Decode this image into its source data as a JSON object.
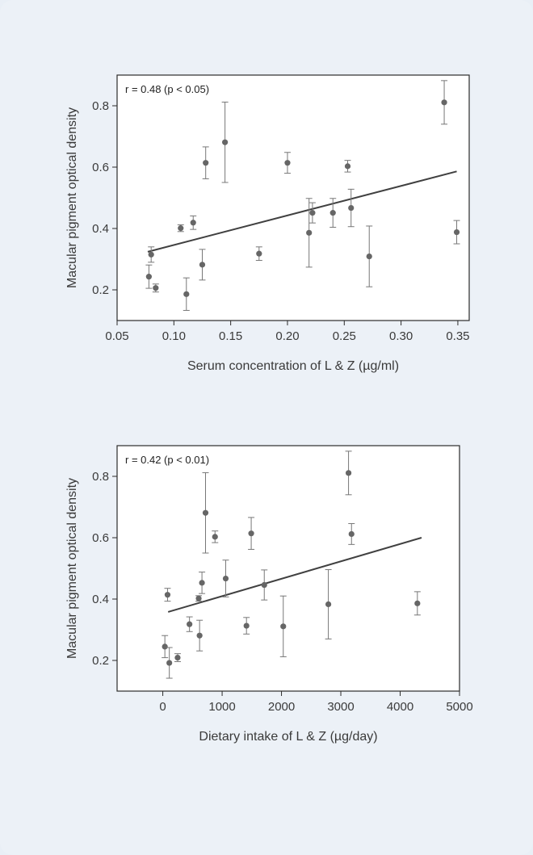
{
  "chart_data": [
    {
      "type": "scatter",
      "annotation": "r = 0.48 (p < 0.05)",
      "xlabel": "Serum concentration of L & Z (µg/ml)",
      "ylabel": "Macular pigment optical density",
      "xlim": [
        0.05,
        0.36
      ],
      "ylim": [
        0.1,
        0.9
      ],
      "x_ticks": [
        {
          "value": 0.05,
          "label": "0.05"
        },
        {
          "value": 0.1,
          "label": "0.10"
        },
        {
          "value": 0.15,
          "label": "0.15"
        },
        {
          "value": 0.2,
          "label": "0.20"
        },
        {
          "value": 0.25,
          "label": "0.25"
        },
        {
          "value": 0.3,
          "label": "0.30"
        },
        {
          "value": 0.35,
          "label": "0.35"
        }
      ],
      "y_ticks": [
        {
          "value": 0.2,
          "label": "0.2"
        },
        {
          "value": 0.4,
          "label": "0.4"
        },
        {
          "value": 0.6,
          "label": "0.6"
        },
        {
          "value": 0.8,
          "label": "0.8"
        }
      ],
      "points": [
        {
          "x": 0.078,
          "y": 0.243,
          "lo": 0.205,
          "hi": 0.281
        },
        {
          "x": 0.08,
          "y": 0.315,
          "lo": 0.29,
          "hi": 0.34
        },
        {
          "x": 0.084,
          "y": 0.206,
          "lo": 0.193,
          "hi": 0.219
        },
        {
          "x": 0.106,
          "y": 0.401,
          "lo": 0.39,
          "hi": 0.412
        },
        {
          "x": 0.111,
          "y": 0.186,
          "lo": 0.133,
          "hi": 0.239
        },
        {
          "x": 0.117,
          "y": 0.419,
          "lo": 0.397,
          "hi": 0.441
        },
        {
          "x": 0.125,
          "y": 0.282,
          "lo": 0.232,
          "hi": 0.332
        },
        {
          "x": 0.128,
          "y": 0.614,
          "lo": 0.562,
          "hi": 0.666
        },
        {
          "x": 0.145,
          "y": 0.681,
          "lo": 0.55,
          "hi": 0.812
        },
        {
          "x": 0.175,
          "y": 0.318,
          "lo": 0.296,
          "hi": 0.34
        },
        {
          "x": 0.2,
          "y": 0.614,
          "lo": 0.58,
          "hi": 0.648
        },
        {
          "x": 0.219,
          "y": 0.386,
          "lo": 0.274,
          "hi": 0.498
        },
        {
          "x": 0.222,
          "y": 0.451,
          "lo": 0.418,
          "hi": 0.484
        },
        {
          "x": 0.24,
          "y": 0.451,
          "lo": 0.404,
          "hi": 0.498
        },
        {
          "x": 0.253,
          "y": 0.603,
          "lo": 0.584,
          "hi": 0.622
        },
        {
          "x": 0.256,
          "y": 0.467,
          "lo": 0.406,
          "hi": 0.528
        },
        {
          "x": 0.272,
          "y": 0.309,
          "lo": 0.21,
          "hi": 0.408
        },
        {
          "x": 0.338,
          "y": 0.811,
          "lo": 0.74,
          "hi": 0.882
        },
        {
          "x": 0.349,
          "y": 0.388,
          "lo": 0.35,
          "hi": 0.426
        }
      ],
      "fit_line": {
        "x": [
          0.077,
          0.349
        ],
        "y": [
          0.324,
          0.586
        ]
      },
      "colors": {
        "point": "#666666",
        "errorbar": "#777777",
        "line": "#404040"
      }
    },
    {
      "type": "scatter",
      "annotation": "r = 0.42 (p < 0.01)",
      "xlabel": "Dietary intake of L & Z (µg/day)",
      "ylabel": "Macular pigment optical density",
      "xlim": [
        -770,
        5000
      ],
      "ylim": [
        0.1,
        0.9
      ],
      "x_ticks": [
        {
          "value": 0,
          "label": "0"
        },
        {
          "value": 1000,
          "label": "1000"
        },
        {
          "value": 2000,
          "label": "2000"
        },
        {
          "value": 3000,
          "label": "3000"
        },
        {
          "value": 4000,
          "label": "4000"
        },
        {
          "value": 5000,
          "label": "5000"
        }
      ],
      "y_ticks": [
        {
          "value": 0.2,
          "label": "0.2"
        },
        {
          "value": 0.4,
          "label": "0.4"
        },
        {
          "value": 0.6,
          "label": "0.6"
        },
        {
          "value": 0.8,
          "label": "0.8"
        }
      ],
      "points": [
        {
          "x": 35,
          "y": 0.245,
          "lo": 0.209,
          "hi": 0.281
        },
        {
          "x": 80,
          "y": 0.414,
          "lo": 0.393,
          "hi": 0.435
        },
        {
          "x": 110,
          "y": 0.192,
          "lo": 0.142,
          "hi": 0.242
        },
        {
          "x": 250,
          "y": 0.209,
          "lo": 0.196,
          "hi": 0.222
        },
        {
          "x": 450,
          "y": 0.318,
          "lo": 0.294,
          "hi": 0.342
        },
        {
          "x": 605,
          "y": 0.402,
          "lo": 0.393,
          "hi": 0.411
        },
        {
          "x": 620,
          "y": 0.281,
          "lo": 0.231,
          "hi": 0.331
        },
        {
          "x": 660,
          "y": 0.453,
          "lo": 0.418,
          "hi": 0.488
        },
        {
          "x": 720,
          "y": 0.681,
          "lo": 0.55,
          "hi": 0.812
        },
        {
          "x": 880,
          "y": 0.603,
          "lo": 0.584,
          "hi": 0.622
        },
        {
          "x": 1060,
          "y": 0.467,
          "lo": 0.407,
          "hi": 0.527
        },
        {
          "x": 1410,
          "y": 0.313,
          "lo": 0.286,
          "hi": 0.34
        },
        {
          "x": 1490,
          "y": 0.614,
          "lo": 0.562,
          "hi": 0.666
        },
        {
          "x": 1710,
          "y": 0.446,
          "lo": 0.397,
          "hi": 0.495
        },
        {
          "x": 2030,
          "y": 0.311,
          "lo": 0.212,
          "hi": 0.41
        },
        {
          "x": 2790,
          "y": 0.383,
          "lo": 0.27,
          "hi": 0.496
        },
        {
          "x": 3130,
          "y": 0.811,
          "lo": 0.74,
          "hi": 0.882
        },
        {
          "x": 3180,
          "y": 0.612,
          "lo": 0.578,
          "hi": 0.646
        },
        {
          "x": 4290,
          "y": 0.386,
          "lo": 0.348,
          "hi": 0.424
        }
      ],
      "fit_line": {
        "x": [
          90,
          4360
        ],
        "y": [
          0.358,
          0.6
        ]
      },
      "colors": {
        "point": "#666666",
        "errorbar": "#777777",
        "line": "#404040"
      }
    }
  ]
}
